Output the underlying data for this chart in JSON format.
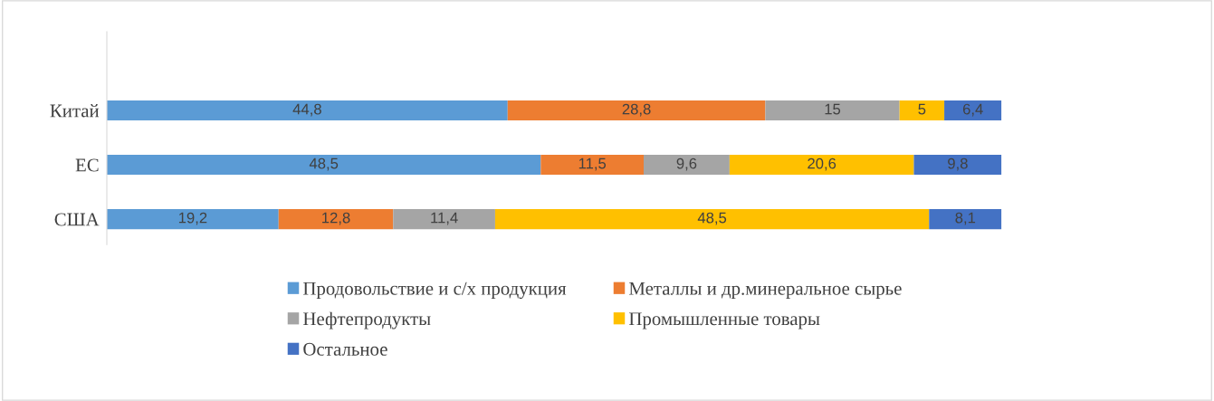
{
  "chart_data": {
    "type": "bar",
    "orientation": "horizontal",
    "stacked": true,
    "legend": "bottom",
    "grid": false,
    "categories": [
      "Китай",
      "ЕС",
      "США"
    ],
    "series": [
      {
        "name": "Продовольствие и с/х продукция",
        "color": "#5b9bd5",
        "values": [
          44.8,
          48.5,
          19.2
        ],
        "value_labels": [
          "44,8",
          "48,5",
          "19,2"
        ]
      },
      {
        "name": "Металлы и др.минеральное сырье",
        "color": "#ed7d31",
        "values": [
          28.8,
          11.5,
          12.8
        ],
        "value_labels": [
          "28,8",
          "11,5",
          "12,8"
        ]
      },
      {
        "name": "Нефтепродукты",
        "color": "#a5a5a5",
        "values": [
          15,
          9.6,
          11.4
        ],
        "value_labels": [
          "15",
          "9,6",
          "11,4"
        ]
      },
      {
        "name": "Промышленные товары",
        "color": "#ffc000",
        "values": [
          5,
          20.6,
          48.5
        ],
        "value_labels": [
          "5",
          "20,6",
          "48,5"
        ]
      },
      {
        "name": "Остальное",
        "color": "#4472c4",
        "values": [
          6.4,
          9.8,
          8.1
        ],
        "value_labels": [
          "6,4",
          "9,8",
          "8,1"
        ]
      }
    ]
  }
}
